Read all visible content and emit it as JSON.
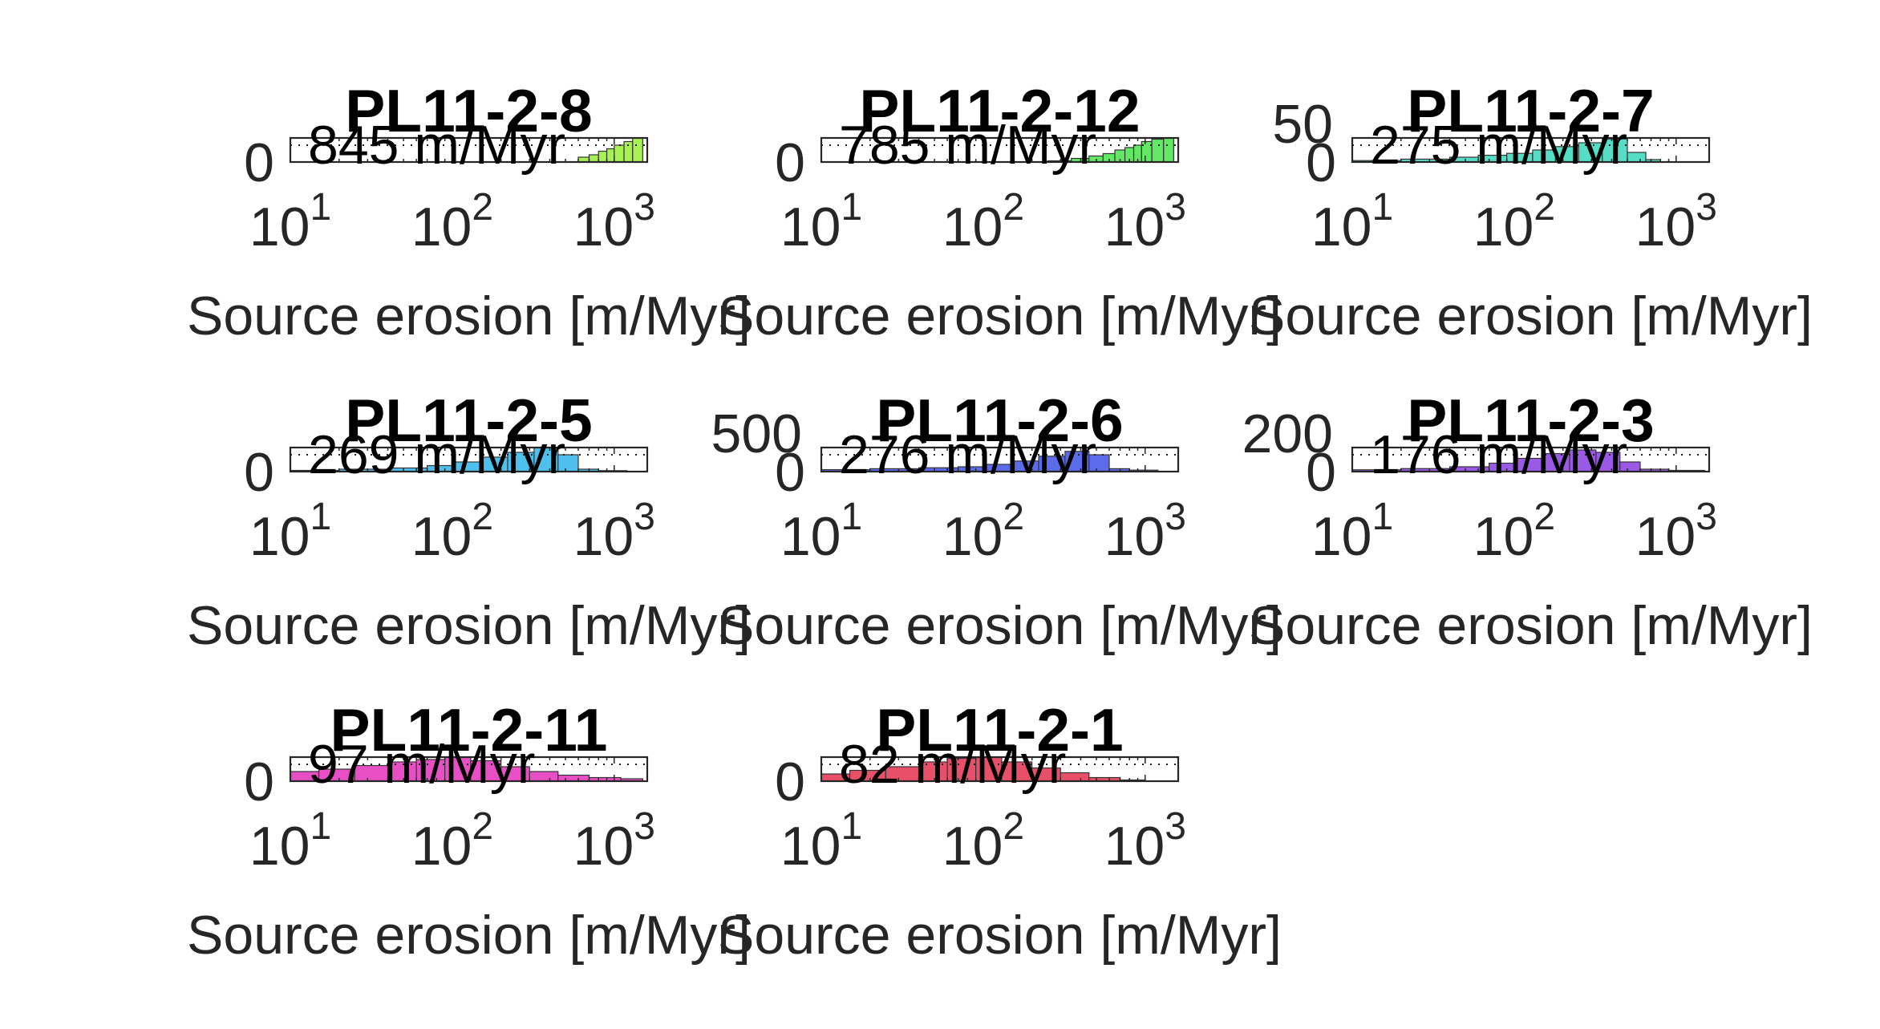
{
  "chart_data": [
    {
      "type": "bar",
      "title": "PL11-2-8",
      "annotation": "845 m/Myr",
      "xlabel": "Source erosion [m/Myr]",
      "xscale": "log",
      "xlim": [
        10,
        1600
      ],
      "x_ticks": [
        "1",
        "2",
        "3"
      ],
      "y_ticks": [
        "0"
      ],
      "ylim": [
        0,
        100
      ],
      "color": "#a8f054",
      "dashed_line": [
        10,
        1600
      ],
      "bins": [
        [
          600,
          700,
          20
        ],
        [
          700,
          800,
          30
        ],
        [
          800,
          900,
          45
        ],
        [
          900,
          1000,
          55
        ],
        [
          1000,
          1150,
          70
        ],
        [
          1150,
          1300,
          85
        ],
        [
          1300,
          1500,
          100
        ]
      ]
    },
    {
      "type": "bar",
      "title": "PL11-2-12",
      "annotation": "785 m/Myr",
      "xlabel": "Source erosion [m/Myr]",
      "xscale": "log",
      "xlim": [
        10,
        1600
      ],
      "x_ticks": [
        "1",
        "2",
        "3"
      ],
      "y_ticks": [
        "0"
      ],
      "ylim": [
        0,
        100
      ],
      "color": "#62e865",
      "dashed_line": [
        10,
        1600
      ],
      "bins": [
        [
          250,
          350,
          5
        ],
        [
          350,
          450,
          15
        ],
        [
          450,
          550,
          25
        ],
        [
          550,
          650,
          35
        ],
        [
          650,
          750,
          50
        ],
        [
          750,
          850,
          60
        ],
        [
          850,
          950,
          70
        ],
        [
          950,
          1100,
          85
        ],
        [
          1100,
          1300,
          95
        ],
        [
          1300,
          1500,
          100
        ]
      ]
    },
    {
      "type": "bar",
      "title": "PL11-2-7",
      "annotation": "275 m/Myr",
      "xlabel": "Source erosion [m/Myr]",
      "xscale": "log",
      "xlim": [
        10,
        1600
      ],
      "x_ticks": [
        "1",
        "2",
        "3"
      ],
      "y_ticks": [
        "0",
        "50"
      ],
      "ylim": [
        0,
        50
      ],
      "color": "#55ddc6",
      "dashed_line": [
        10,
        1600
      ],
      "bins": [
        [
          10,
          20,
          3
        ],
        [
          20,
          40,
          6
        ],
        [
          40,
          60,
          10
        ],
        [
          60,
          90,
          14
        ],
        [
          90,
          130,
          18
        ],
        [
          130,
          180,
          25
        ],
        [
          180,
          250,
          32
        ],
        [
          250,
          350,
          40
        ],
        [
          350,
          500,
          48
        ],
        [
          500,
          650,
          20
        ],
        [
          650,
          800,
          5
        ]
      ]
    },
    {
      "type": "bar",
      "title": "PL11-2-5",
      "annotation": "269 m/Myr",
      "xlabel": "Source erosion [m/Myr]",
      "xscale": "log",
      "xlim": [
        10,
        1600
      ],
      "x_ticks": [
        "1",
        "2",
        "3"
      ],
      "y_ticks": [
        "0"
      ],
      "ylim": [
        0,
        100
      ],
      "color": "#4fc0ee",
      "dashed_line": [
        10,
        1600
      ],
      "bins": [
        [
          10,
          20,
          5
        ],
        [
          20,
          40,
          10
        ],
        [
          40,
          70,
          15
        ],
        [
          70,
          100,
          25
        ],
        [
          100,
          150,
          40
        ],
        [
          150,
          220,
          60
        ],
        [
          220,
          320,
          80
        ],
        [
          320,
          450,
          100
        ],
        [
          450,
          600,
          70
        ],
        [
          600,
          800,
          10
        ],
        [
          800,
          1200,
          4
        ]
      ]
    },
    {
      "type": "bar",
      "title": "PL11-2-6",
      "annotation": "276 m/Myr",
      "xlabel": "Source erosion [m/Myr]",
      "xscale": "log",
      "xlim": [
        10,
        1600
      ],
      "x_ticks": [
        "1",
        "2",
        "3"
      ],
      "y_ticks": [
        "0",
        "500"
      ],
      "ylim": [
        0,
        500
      ],
      "color": "#5c6bea",
      "dashed_line": [
        10,
        1600
      ],
      "bins": [
        [
          10,
          20,
          40
        ],
        [
          20,
          40,
          60
        ],
        [
          40,
          70,
          80
        ],
        [
          70,
          100,
          100
        ],
        [
          100,
          150,
          150
        ],
        [
          150,
          220,
          220
        ],
        [
          220,
          320,
          320
        ],
        [
          320,
          450,
          420
        ],
        [
          450,
          600,
          350
        ],
        [
          600,
          800,
          60
        ],
        [
          800,
          1200,
          30
        ]
      ]
    },
    {
      "type": "bar",
      "title": "PL11-2-3",
      "annotation": "176 m/Myr",
      "xlabel": "Source erosion [m/Myr]",
      "xscale": "log",
      "xlim": [
        10,
        1600
      ],
      "x_ticks": [
        "1",
        "2",
        "3"
      ],
      "y_ticks": [
        "0",
        "200"
      ],
      "ylim": [
        0,
        200
      ],
      "color": "#9a5ae6",
      "dashed_line": [
        10,
        1600
      ],
      "bins": [
        [
          10,
          20,
          15
        ],
        [
          20,
          40,
          25
        ],
        [
          40,
          70,
          40
        ],
        [
          70,
          100,
          70
        ],
        [
          100,
          150,
          110
        ],
        [
          150,
          220,
          150
        ],
        [
          220,
          320,
          180
        ],
        [
          320,
          450,
          160
        ],
        [
          450,
          600,
          80
        ],
        [
          600,
          900,
          20
        ],
        [
          900,
          1500,
          10
        ]
      ]
    },
    {
      "type": "bar",
      "title": "PL11-2-11",
      "annotation": "97 m/Myr",
      "xlabel": "Source erosion [m/Myr]",
      "xscale": "log",
      "xlim": [
        10,
        1600
      ],
      "x_ticks": [
        "1",
        "2",
        "3"
      ],
      "y_ticks": [
        "0"
      ],
      "ylim": [
        0,
        100
      ],
      "color": "#e84fc4",
      "dashed_line": [
        10,
        1600
      ],
      "bins": [
        [
          10,
          15,
          40
        ],
        [
          15,
          25,
          50
        ],
        [
          25,
          40,
          65
        ],
        [
          40,
          60,
          80
        ],
        [
          60,
          90,
          90
        ],
        [
          90,
          130,
          100
        ],
        [
          130,
          200,
          85
        ],
        [
          200,
          300,
          60
        ],
        [
          300,
          450,
          40
        ],
        [
          450,
          700,
          25
        ],
        [
          700,
          1100,
          15
        ],
        [
          1100,
          1500,
          10
        ]
      ]
    },
    {
      "type": "bar",
      "title": "PL11-2-1",
      "annotation": "82 m/Myr",
      "xlabel": "Source erosion [m/Myr]",
      "xscale": "log",
      "xlim": [
        10,
        1600
      ],
      "x_ticks": [
        "1",
        "2",
        "3"
      ],
      "y_ticks": [
        "0"
      ],
      "ylim": [
        0,
        100
      ],
      "color": "#e8506a",
      "dashed_line": [
        10,
        1600
      ],
      "bins": [
        [
          10,
          15,
          30
        ],
        [
          15,
          25,
          45
        ],
        [
          25,
          40,
          60
        ],
        [
          40,
          60,
          80
        ],
        [
          60,
          90,
          95
        ],
        [
          90,
          130,
          100
        ],
        [
          130,
          200,
          80
        ],
        [
          200,
          300,
          55
        ],
        [
          300,
          450,
          35
        ],
        [
          450,
          700,
          15
        ],
        [
          700,
          1000,
          5
        ]
      ]
    }
  ]
}
